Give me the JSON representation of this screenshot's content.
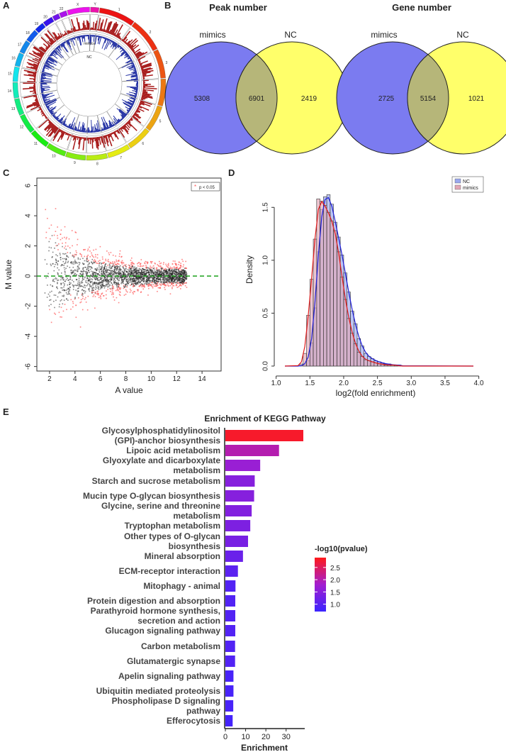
{
  "panels": {
    "a": "A",
    "b": "B",
    "c": "C",
    "d": "D",
    "e": "E"
  },
  "colors": {
    "venn_mimics": "#7b7bf0",
    "venn_nc": "#ffff6a",
    "venn_overlap": "#b6b679",
    "ma_sig": "#ff5a5a",
    "ma_ns": "#222222",
    "ma_zero_line": "#1aa01a",
    "hist_nc": "#9aa8ee",
    "hist_mimics": "#e1a6b6",
    "curve_nc": "#1a1ad6",
    "curve_mimics": "#e01a1a",
    "kegg_high": "#ff1a1a",
    "kegg_low": "#3a24ff"
  },
  "chart_data": [
    {
      "id": "circos",
      "type": "other",
      "title": "",
      "chromosomes": [
        "1",
        "2",
        "3",
        "4",
        "5",
        "6",
        "7",
        "8",
        "9",
        "10",
        "11",
        "12",
        "13",
        "14",
        "15",
        "16",
        "17",
        "18",
        "19",
        "20",
        "21",
        "22",
        "X",
        "Y"
      ],
      "tracks": [
        "mimics",
        "NC"
      ]
    },
    {
      "id": "venn-peak",
      "type": "venn",
      "title": "Peak number",
      "sets": [
        "mimics",
        "NC"
      ],
      "values": {
        "only_a": 5308,
        "both": 6901,
        "only_b": 2419
      }
    },
    {
      "id": "venn-gene",
      "type": "venn",
      "title": "Gene number",
      "sets": [
        "mimics",
        "NC"
      ],
      "values": {
        "only_a": 2725,
        "both": 5154,
        "only_b": 1021
      }
    },
    {
      "id": "ma-plot",
      "type": "scatter",
      "xlabel": "A value",
      "ylabel": "M value",
      "xlim": [
        1,
        15.5
      ],
      "ylim": [
        -6.3,
        6.5
      ],
      "xticks": [
        2,
        4,
        6,
        8,
        10,
        12,
        14
      ],
      "yticks": [
        -6,
        -4,
        -2,
        0,
        2,
        4,
        6
      ],
      "xtick_labels": [
        "2",
        "4",
        "6",
        "8",
        "10",
        "12",
        "14"
      ],
      "ytick_labels": [
        "-6",
        "-4",
        "-2",
        "0",
        "2",
        "4",
        "6"
      ],
      "legend": "p < 0.05",
      "reference_line_y": 0
    },
    {
      "id": "density-hist",
      "type": "bar",
      "xlabel": "log2(fold enrichment)",
      "ylabel": "Density",
      "xlim": [
        1.0,
        4.0
      ],
      "ylim": [
        0,
        1.75
      ],
      "xticks": [
        1.0,
        1.5,
        2.0,
        2.5,
        3.0,
        3.5,
        4.0
      ],
      "yticks": [
        0.0,
        0.5,
        1.0,
        1.5
      ],
      "xtick_labels": [
        "1.0",
        "1.5",
        "2.0",
        "2.5",
        "3.0",
        "3.5",
        "4.0"
      ],
      "ytick_labels": [
        "0.0",
        "0.5",
        "1.0",
        "1.5"
      ],
      "bin_start": 1.35,
      "bin_width": 0.05,
      "series": [
        {
          "name": "NC",
          "values": [
            0.0,
            0.02,
            0.05,
            0.22,
            0.55,
            1.08,
            1.48,
            1.6,
            1.62,
            1.53,
            1.36,
            1.22,
            1.05,
            0.88,
            0.7,
            0.52,
            0.4,
            0.26,
            0.19,
            0.12,
            0.09,
            0.07,
            0.05,
            0.04,
            0.03,
            0.02,
            0.02,
            0.01,
            0.01,
            0.01
          ]
        },
        {
          "name": "mimics",
          "values": [
            0.02,
            0.12,
            0.48,
            0.82,
            1.2,
            1.58,
            1.56,
            1.52,
            1.45,
            1.37,
            1.28,
            1.08,
            0.84,
            0.63,
            0.45,
            0.31,
            0.21,
            0.13,
            0.09,
            0.06,
            0.05,
            0.04,
            0.03,
            0.02,
            0.02,
            0.01,
            0.01,
            0.01,
            0.01,
            0.0
          ]
        }
      ],
      "legend": [
        "NC",
        "mimics"
      ]
    },
    {
      "id": "kegg-bar",
      "type": "bar",
      "orientation": "horizontal",
      "title": "Enrichment of KEGG Pathway",
      "xlabel": "Enrichment",
      "xlim": [
        0,
        40
      ],
      "xticks": [
        0,
        10,
        20,
        30
      ],
      "xtick_labels": [
        "0",
        "10",
        "20",
        "30"
      ],
      "categories": [
        [
          "Glycosylphosphatidylinositol",
          "(GPI)-anchor biosynthesis"
        ],
        [
          "Lipoic acid metabolism"
        ],
        [
          "Glyoxylate and dicarboxylate",
          "metabolism"
        ],
        [
          "Starch and sucrose metabolism"
        ],
        [
          "Mucin type O-glycan biosynthesis"
        ],
        [
          "Glycine, serine and threonine",
          "metabolism"
        ],
        [
          "Tryptophan metabolism"
        ],
        [
          "Other types of O-glycan",
          "biosynthesis"
        ],
        [
          "Mineral absorption"
        ],
        [
          "ECM-receptor interaction"
        ],
        [
          "Mitophagy - animal"
        ],
        [
          "Protein digestion and absorption"
        ],
        [
          "Parathyroid hormone synthesis,",
          "secretion and action"
        ],
        [
          "Glucagon signaling pathway"
        ],
        [
          "Carbon metabolism"
        ],
        [
          "Glutamatergic synapse"
        ],
        [
          "Apelin signaling pathway"
        ],
        [
          "Ubiquitin mediated proteolysis"
        ],
        [
          "Phospholipase D signaling",
          "pathway"
        ],
        [
          "Efferocytosis"
        ]
      ],
      "values": [
        38.5,
        26.5,
        17.2,
        14.5,
        14.2,
        13.0,
        12.3,
        11.2,
        8.7,
        6.2,
        5.0,
        4.9,
        4.9,
        4.9,
        4.8,
        4.8,
        4.0,
        4.0,
        3.9,
        3.6
      ],
      "neglog10p": [
        2.8,
        2.0,
        1.7,
        1.5,
        1.5,
        1.45,
        1.4,
        1.35,
        1.2,
        1.05,
        0.95,
        0.95,
        0.95,
        0.95,
        0.95,
        0.95,
        0.85,
        0.85,
        0.85,
        0.8
      ],
      "legend_title": "-log10(pvalue)",
      "legend_ticks": [
        1.0,
        1.5,
        2.0,
        2.5
      ],
      "legend_tick_labels": [
        "1.0",
        "1.5",
        "2.0",
        "2.5"
      ],
      "color_range": [
        0.7,
        2.9
      ]
    }
  ]
}
